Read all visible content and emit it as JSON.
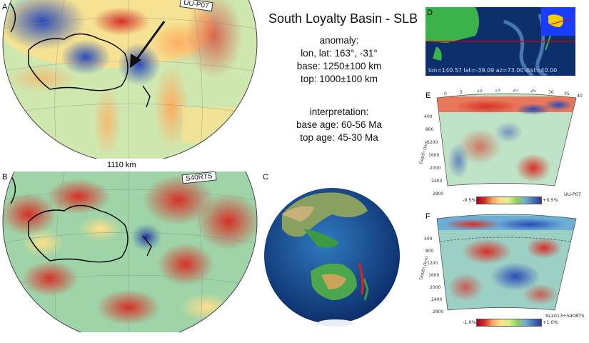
{
  "title": "South Loyalty Basin - SLB",
  "anomaly": {
    "heading": "anomaly:",
    "lonlat": "lon, lat: 163°, -31°",
    "base": "base: 1250±100 km",
    "top": "top: 1000±100 km"
  },
  "interpretation": {
    "heading": "interpretation:",
    "base_age": "base age:  60-56 Ma",
    "top_age": "top age: 45-30 Ma"
  },
  "panels": {
    "a": {
      "label": "A",
      "model_tag": "UU-P07"
    },
    "b": {
      "label": "B",
      "model_tag": "S40RTS"
    },
    "c": {
      "label": "C"
    },
    "d": {
      "label": "D",
      "coords": "lon=140.57 lat=-39.09 az=73.00 dist=40.00"
    },
    "e": {
      "label": "E",
      "model": "UU-P07",
      "cb_min": "-0.5%",
      "cb_max": "+0.5%",
      "depth_label": "Depth (km)",
      "x_ticks": [
        "0",
        "5",
        "10",
        "15",
        "20",
        "25",
        "30",
        "35",
        "40"
      ],
      "y_ticks": [
        "400",
        "800",
        "1200",
        "1600",
        "2000",
        "2400",
        "2800"
      ]
    },
    "f": {
      "label": "F",
      "model": "SL2013+S40RTS",
      "cb_min": "-1.0%",
      "cb_max": "+1.0%",
      "depth_label": "Depth (km)",
      "y_ticks": [
        "400",
        "800",
        "1200",
        "1600",
        "2000",
        "2400",
        "2800"
      ]
    }
  },
  "scale_text": "1110 km",
  "colors": {
    "ocean_deep": "#0d2f6b",
    "land_green": "#3bb34a",
    "red": "#d73027",
    "yellow": "#fee08b",
    "blue": "#2a4bb8",
    "pale_green": "#cfe8b0"
  }
}
